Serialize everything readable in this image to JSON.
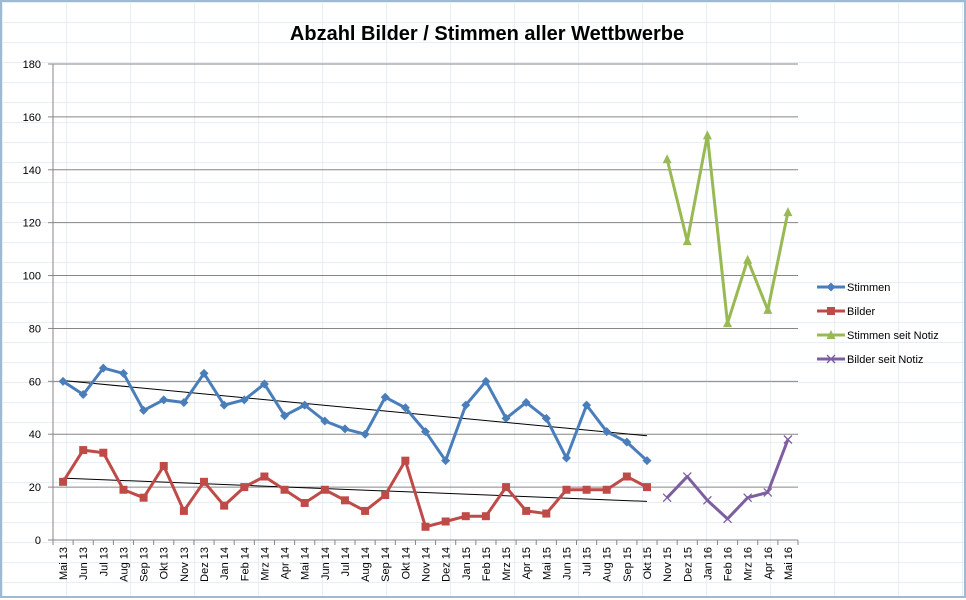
{
  "chart_data": {
    "type": "line",
    "title": "Abzahl Bilder / Stimmen aller Wettbwerbe",
    "xlabel": "",
    "ylabel": "",
    "ylim": [
      0,
      180
    ],
    "yticks": [
      0,
      20,
      40,
      60,
      80,
      100,
      120,
      140,
      160,
      180
    ],
    "grid": "horizontal",
    "legend_position": "right",
    "categories": [
      "Mai 13",
      "Jun 13",
      "Jul 13",
      "Aug 13",
      "Sep 13",
      "Okt 13",
      "Nov 13",
      "Dez 13",
      "Jan 14",
      "Feb 14",
      "Mrz 14",
      "Apr 14",
      "Mai 14",
      "Jun 14",
      "Jul 14",
      "Aug 14",
      "Sep 14",
      "Okt 14",
      "Nov 14",
      "Dez 14",
      "Jan 15",
      "Feb 15",
      "Mrz 15",
      "Apr 15",
      "Mai 15",
      "Jun 15",
      "Jul 15",
      "Aug 15",
      "Sep 15",
      "Okt 15",
      "Nov 15",
      "Dez 15",
      "Jan 16",
      "Feb 16",
      "Mrz 16",
      "Apr 16",
      "Mai 16"
    ],
    "series": [
      {
        "name": "Stimmen",
        "color": "#4a7ebb",
        "marker": "diamond",
        "values": [
          60,
          55,
          65,
          63,
          49,
          53,
          52,
          63,
          51,
          53,
          59,
          47,
          51,
          45,
          42,
          40,
          54,
          50,
          41,
          30,
          51,
          60,
          46,
          52,
          46,
          31,
          51,
          41,
          37,
          30,
          null,
          null,
          null,
          null,
          null,
          null,
          null
        ]
      },
      {
        "name": "Bilder",
        "color": "#be4b48",
        "marker": "square",
        "values": [
          22,
          34,
          33,
          19,
          16,
          28,
          11,
          22,
          13,
          20,
          24,
          19,
          14,
          19,
          15,
          11,
          17,
          30,
          5,
          7,
          9,
          9,
          20,
          11,
          10,
          19,
          19,
          19,
          24,
          20,
          null,
          null,
          null,
          null,
          null,
          null,
          null
        ]
      },
      {
        "name": "Stimmen seit Notiz",
        "color": "#98b954",
        "marker": "triangle",
        "values": [
          null,
          null,
          null,
          null,
          null,
          null,
          null,
          null,
          null,
          null,
          null,
          null,
          null,
          null,
          null,
          null,
          null,
          null,
          null,
          null,
          null,
          null,
          null,
          null,
          null,
          null,
          null,
          null,
          null,
          null,
          144,
          113,
          153,
          82,
          106,
          87,
          124
        ]
      },
      {
        "name": "Bilder seit Notiz",
        "color": "#7d5fa0",
        "marker": "x",
        "values": [
          null,
          null,
          null,
          null,
          null,
          null,
          null,
          null,
          null,
          null,
          null,
          null,
          null,
          null,
          null,
          null,
          null,
          null,
          null,
          null,
          null,
          null,
          null,
          null,
          null,
          null,
          null,
          null,
          null,
          null,
          16,
          24,
          15,
          8,
          16,
          18,
          38
        ]
      }
    ],
    "trendlines": [
      {
        "of": "Stimmen",
        "color": "#000000",
        "from": [
          0,
          60.3
        ],
        "to": [
          29,
          39.4
        ]
      },
      {
        "of": "Bilder",
        "color": "#000000",
        "from": [
          0,
          23.4
        ],
        "to": [
          29,
          14.6
        ]
      }
    ]
  }
}
